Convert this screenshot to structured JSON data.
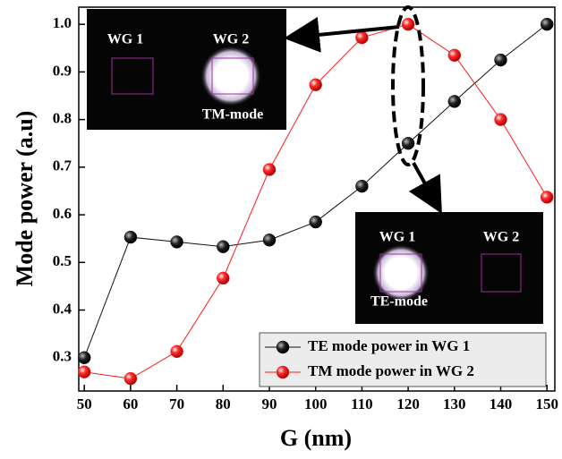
{
  "chart_data": {
    "type": "line",
    "xlabel": "G (nm)",
    "ylabel": "Mode power (a.u)",
    "x": [
      50,
      60,
      70,
      80,
      90,
      100,
      110,
      120,
      130,
      140,
      150
    ],
    "series": [
      {
        "name": "TE mode power in WG 1",
        "color": "#111111",
        "values": [
          0.3,
          0.553,
          0.543,
          0.533,
          0.547,
          0.585,
          0.66,
          0.75,
          0.838,
          0.925,
          1.0
        ]
      },
      {
        "name": "TM mode power in WG 2",
        "color": "#ff1a1a",
        "values": [
          0.27,
          0.256,
          0.313,
          0.467,
          0.695,
          0.873,
          0.972,
          1.0,
          0.935,
          0.8,
          0.637
        ]
      }
    ],
    "xlim": [
      48.8,
      151.7
    ],
    "ylim": [
      0.23,
      1.036
    ],
    "xticks": [
      50,
      60,
      70,
      80,
      90,
      100,
      110,
      120,
      130,
      140,
      150
    ],
    "yticks": [
      0.3,
      0.4,
      0.5,
      0.6,
      0.7,
      0.8,
      0.9,
      {
        "value": 1.0,
        "label": "1.0"
      }
    ],
    "legend": "lower right",
    "insets": [
      {
        "left": "WG 1",
        "right": "WG 2",
        "mode": "TM-mode"
      },
      {
        "left": "WG 1",
        "right": "WG 2",
        "mode": "TE-mode"
      }
    ]
  }
}
